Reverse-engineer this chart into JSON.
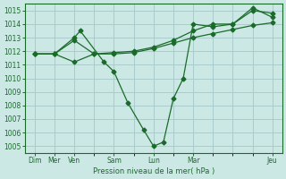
{
  "bg_color": "#cce8e4",
  "grid_color": "#aacccc",
  "line_color": "#1a6b2a",
  "marker_color": "#1a6b2a",
  "xlabel": "Pression niveau de la mer( hPa )",
  "ylim": [
    1004.5,
    1015.5
  ],
  "yticks": [
    1005,
    1006,
    1007,
    1008,
    1009,
    1010,
    1011,
    1012,
    1013,
    1014,
    1015
  ],
  "xtick_positions": [
    0,
    1,
    2,
    4,
    6,
    8,
    12
  ],
  "xtick_labels": [
    "Dim",
    "Mer",
    "Ven",
    "Sam",
    "Lun",
    "Mar",
    "Jeu"
  ],
  "xmax": 13,
  "series1_x": [
    0,
    1,
    2,
    3,
    4,
    5,
    6,
    7,
    8,
    9,
    10,
    11,
    12
  ],
  "series1_y": [
    1011.8,
    1011.8,
    1011.2,
    1011.8,
    1011.8,
    1011.9,
    1012.2,
    1012.6,
    1013.0,
    1013.3,
    1013.6,
    1013.9,
    1014.1
  ],
  "series2_x": [
    0,
    1,
    2,
    2.3,
    3.5,
    4,
    4.7,
    5.5,
    6,
    6.5,
    7,
    7.5,
    8,
    9,
    10,
    11,
    12
  ],
  "series2_y": [
    1011.8,
    1011.8,
    1013.0,
    1013.5,
    1011.2,
    1010.5,
    1008.2,
    1006.2,
    1005.0,
    1005.3,
    1008.5,
    1010.0,
    1014.0,
    1013.8,
    1014.0,
    1015.2,
    1014.5
  ],
  "series3_x": [
    0,
    1,
    2,
    3,
    4,
    5,
    6,
    7,
    8,
    9,
    10,
    11,
    12
  ],
  "series3_y": [
    1011.8,
    1011.8,
    1012.8,
    1011.8,
    1011.9,
    1012.0,
    1012.3,
    1012.8,
    1013.5,
    1014.0,
    1014.0,
    1015.0,
    1014.8
  ]
}
